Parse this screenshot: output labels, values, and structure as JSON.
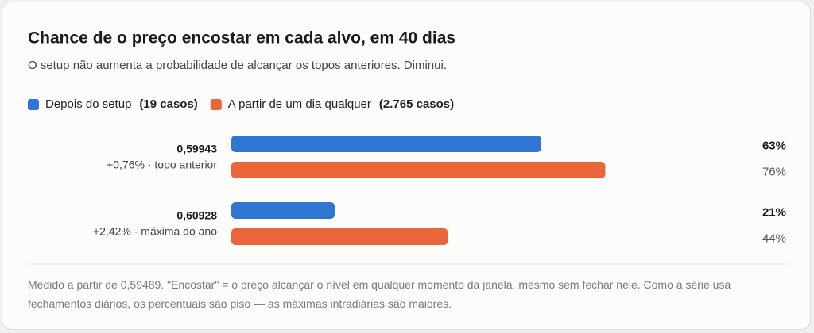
{
  "chart_data": {
    "type": "hbar-grouped",
    "title": "Chance de o preço encostar em cada alvo, em 40 dias",
    "subtitle": "O setup não aumenta a probabilidade de alcançar os topos anteriores. Diminui.",
    "categories": [
      "0,59943",
      "0,60928"
    ],
    "category_subtitles": [
      "+0,76% · topo anterior",
      "+2,42% · máxima do ano"
    ],
    "series": [
      {
        "name": "Depois do setup",
        "count_label": "(19 casos)",
        "color": "#2f76d2",
        "values": [
          63,
          21
        ],
        "value_labels": [
          "63%",
          "21%"
        ]
      },
      {
        "name": "A partir de um dia qualquer",
        "count_label": "(2.765 casos)",
        "color": "#e8663a",
        "values": [
          76,
          44
        ],
        "value_labels": [
          "76%",
          "44%"
        ]
      }
    ],
    "xlim": [
      0,
      100
    ],
    "footnote": "Medido a partir de 0,59489. \"Encostar\" = o preço alcançar o nível em qualquer momento da janela, mesmo sem fechar nele. Como a série usa fechamentos diários, os percentuais são piso — as máximas intradiárias são maiores."
  }
}
